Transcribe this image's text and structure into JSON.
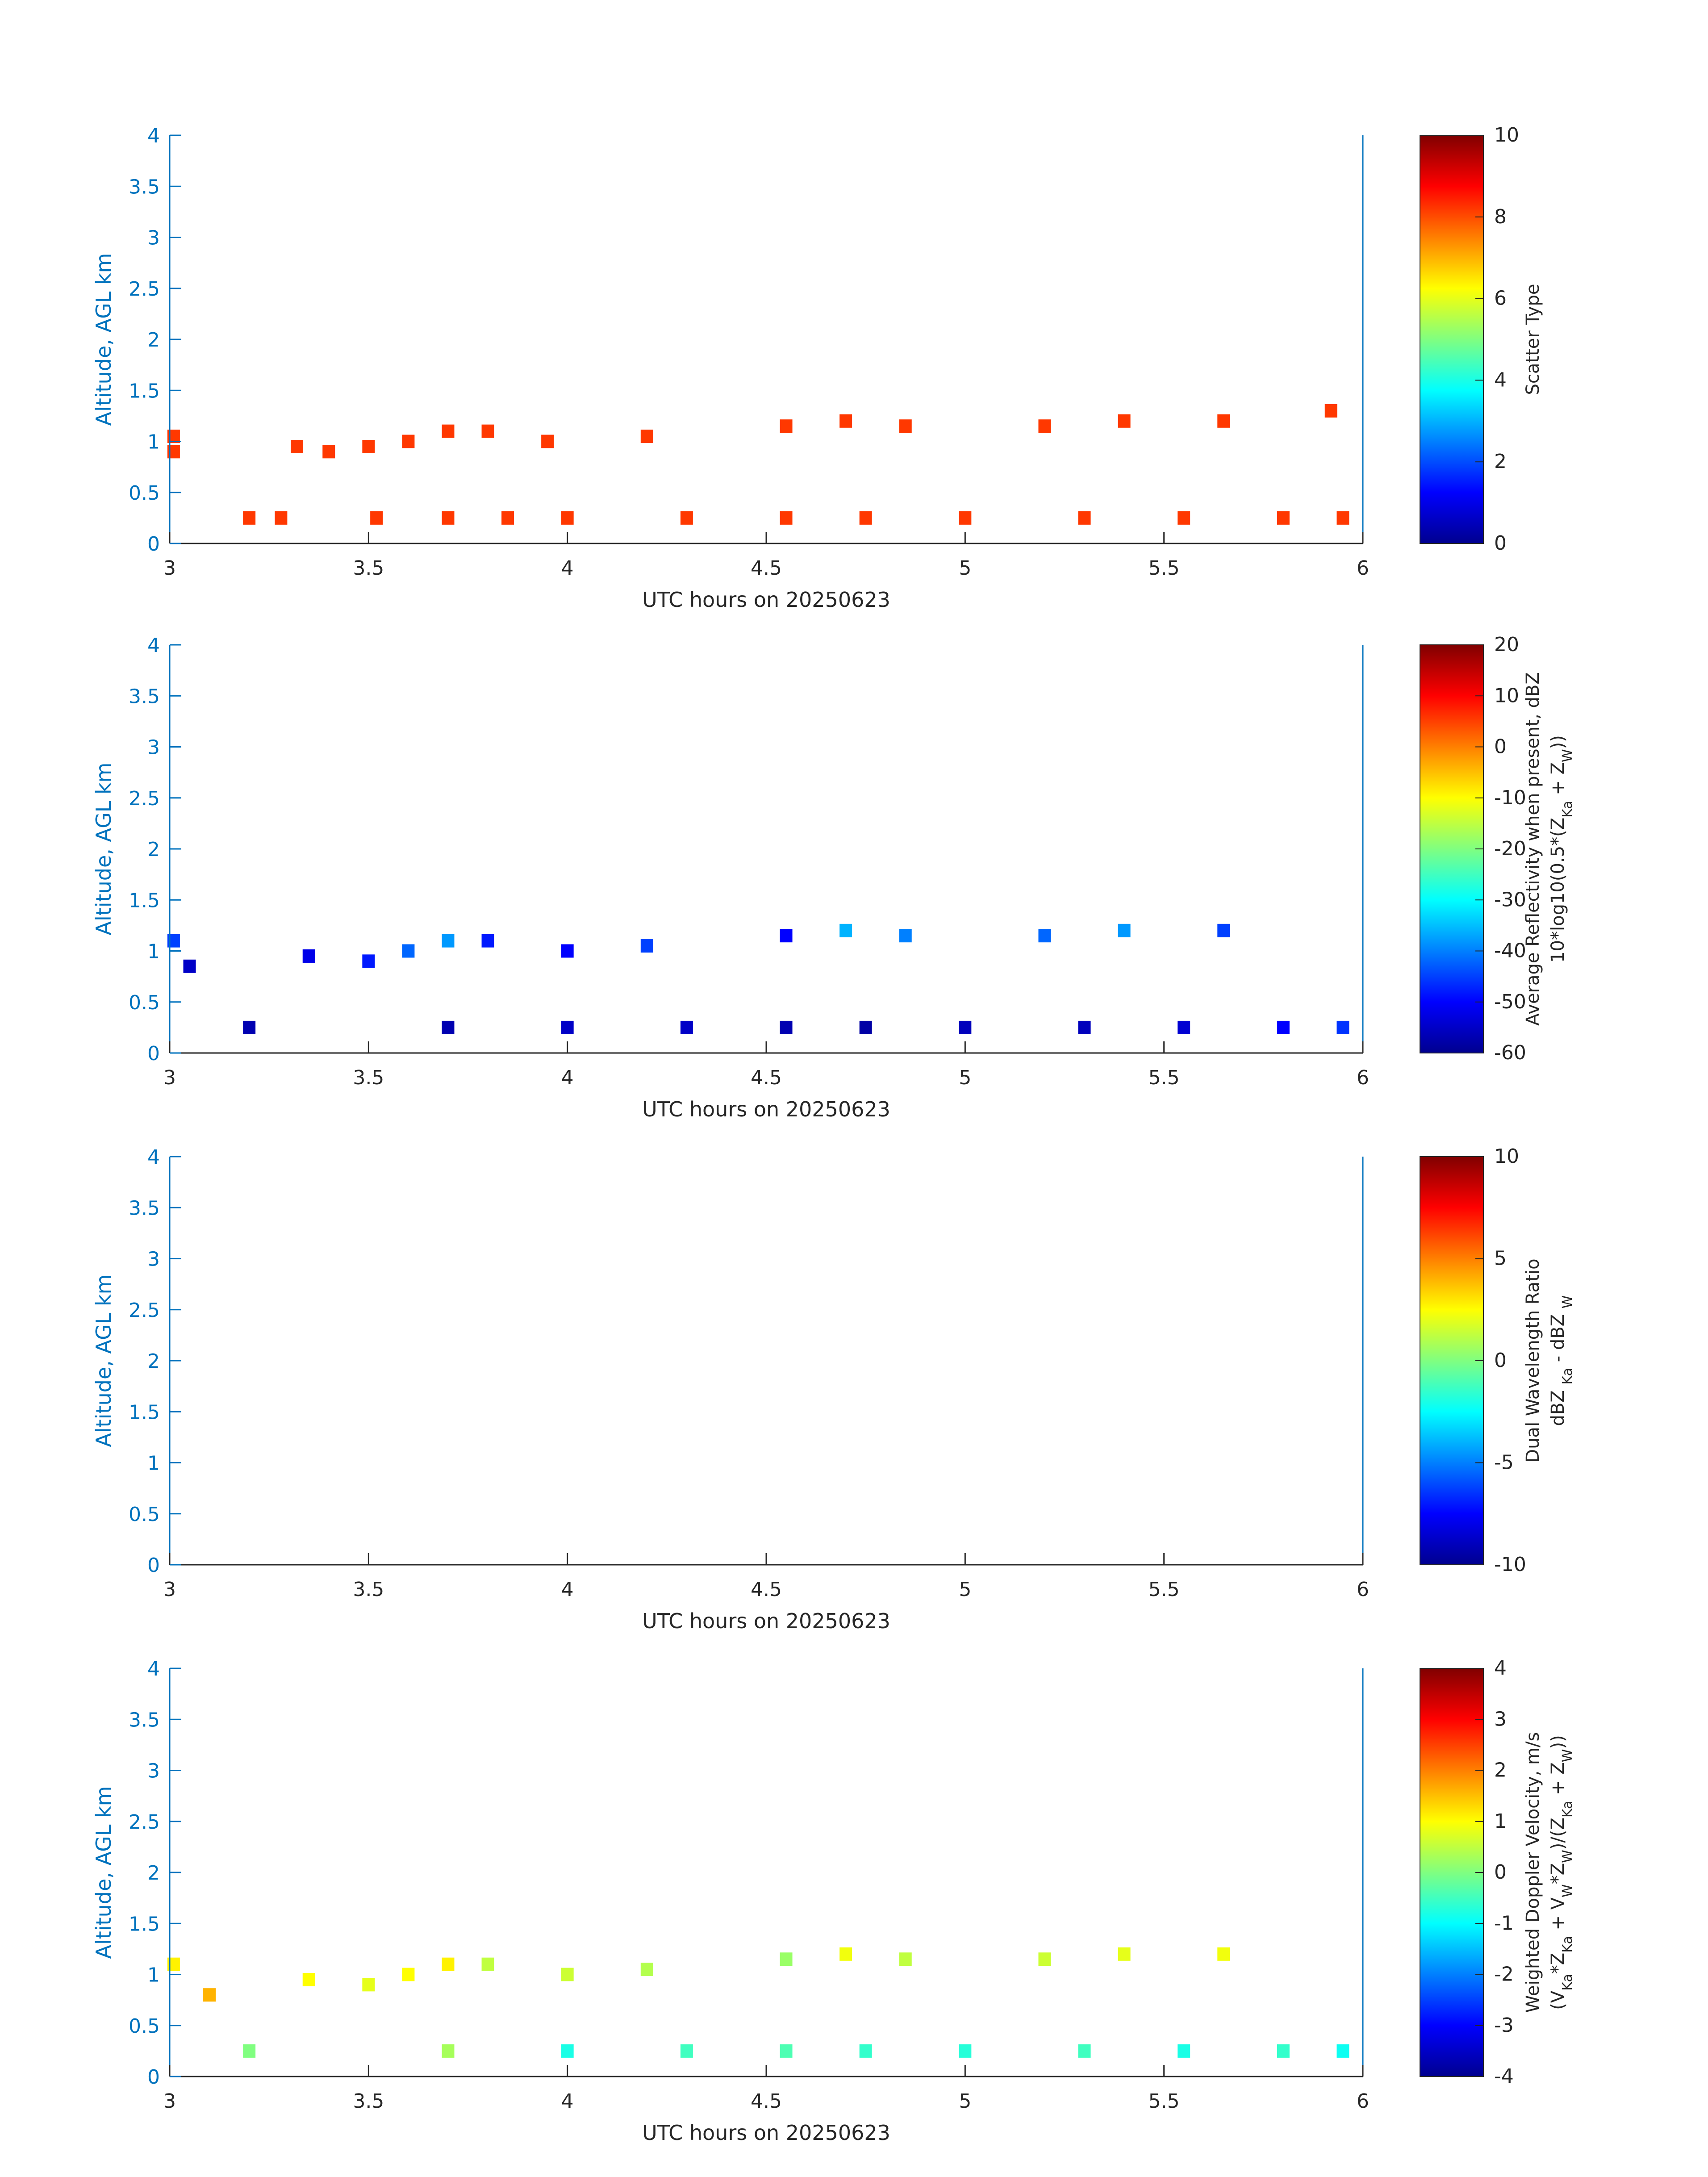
{
  "chart_data": [
    {
      "type": "heatmap",
      "xlabel": "UTC hours on 20250623",
      "ylabel": "Altitude, AGL km",
      "xlim": [
        3,
        6
      ],
      "ylim": [
        0,
        4
      ],
      "xticks": [
        "3",
        "3.5",
        "4",
        "4.5",
        "5",
        "5.5",
        "6"
      ],
      "yticks": [
        "0",
        "0.5",
        "1",
        "1.5",
        "2",
        "2.5",
        "3",
        "3.5",
        "4"
      ],
      "colorbar": {
        "label_lines": [
          "Scatter Type"
        ],
        "range": [
          0,
          10
        ],
        "ticks": [
          "0",
          "2",
          "4",
          "6",
          "8",
          "10"
        ]
      },
      "cells": [
        {
          "x": 3.01,
          "alt": 1.05,
          "v": 8.2
        },
        {
          "x": 3.01,
          "alt": 0.9,
          "v": 8.2
        },
        {
          "x": 3.2,
          "alt": 0.25,
          "v": 8.2
        },
        {
          "x": 3.28,
          "alt": 0.25,
          "v": 8.2
        },
        {
          "x": 3.32,
          "alt": 0.95,
          "v": 8.2
        },
        {
          "x": 3.4,
          "alt": 0.9,
          "v": 8.2
        },
        {
          "x": 3.5,
          "alt": 0.95,
          "v": 8.2
        },
        {
          "x": 3.52,
          "alt": 0.25,
          "v": 8.2
        },
        {
          "x": 3.6,
          "alt": 1.0,
          "v": 8.2
        },
        {
          "x": 3.7,
          "alt": 1.1,
          "v": 8.2
        },
        {
          "x": 3.7,
          "alt": 0.25,
          "v": 8.2
        },
        {
          "x": 3.8,
          "alt": 1.1,
          "v": 8.2
        },
        {
          "x": 3.85,
          "alt": 0.25,
          "v": 8.2
        },
        {
          "x": 3.95,
          "alt": 1.0,
          "v": 8.2
        },
        {
          "x": 4.0,
          "alt": 0.25,
          "v": 8.2
        },
        {
          "x": 4.2,
          "alt": 1.05,
          "v": 8.2
        },
        {
          "x": 4.3,
          "alt": 0.25,
          "v": 8.2
        },
        {
          "x": 4.55,
          "alt": 1.15,
          "v": 8.2
        },
        {
          "x": 4.55,
          "alt": 0.25,
          "v": 8.2
        },
        {
          "x": 4.7,
          "alt": 1.2,
          "v": 8.2
        },
        {
          "x": 4.75,
          "alt": 0.25,
          "v": 8.2
        },
        {
          "x": 4.85,
          "alt": 1.15,
          "v": 8.2
        },
        {
          "x": 5.0,
          "alt": 0.25,
          "v": 8.2
        },
        {
          "x": 5.2,
          "alt": 1.15,
          "v": 8.2
        },
        {
          "x": 5.3,
          "alt": 0.25,
          "v": 8.2
        },
        {
          "x": 5.4,
          "alt": 1.2,
          "v": 8.2
        },
        {
          "x": 5.55,
          "alt": 0.25,
          "v": 8.2
        },
        {
          "x": 5.65,
          "alt": 1.2,
          "v": 8.2
        },
        {
          "x": 5.8,
          "alt": 0.25,
          "v": 8.2
        },
        {
          "x": 5.92,
          "alt": 1.3,
          "v": 8.2
        },
        {
          "x": 5.95,
          "alt": 0.25,
          "v": 8.2
        }
      ]
    },
    {
      "type": "heatmap",
      "xlabel": "UTC hours on 20250623",
      "ylabel": "Altitude, AGL km",
      "xlim": [
        3,
        6
      ],
      "ylim": [
        0,
        4
      ],
      "xticks": [
        "3",
        "3.5",
        "4",
        "4.5",
        "5",
        "5.5",
        "6"
      ],
      "yticks": [
        "0",
        "0.5",
        "1",
        "1.5",
        "2",
        "2.5",
        "3",
        "3.5",
        "4"
      ],
      "colorbar": {
        "label_lines": [
          "Average Reflectivity when present, dBZ",
          "10*log10(0.5*(Z<sub>Ka</sub> + Z<sub>W</sub>))"
        ],
        "range": [
          -60,
          20
        ],
        "ticks": [
          "-60",
          "-50",
          "-40",
          "-30",
          "-20",
          "-10",
          "0",
          "10",
          "20"
        ]
      },
      "cells": [
        {
          "x": 3.01,
          "alt": 1.1,
          "v": -45
        },
        {
          "x": 3.05,
          "alt": 0.85,
          "v": -55
        },
        {
          "x": 3.2,
          "alt": 0.25,
          "v": -57
        },
        {
          "x": 3.35,
          "alt": 0.95,
          "v": -52
        },
        {
          "x": 3.5,
          "alt": 0.9,
          "v": -48
        },
        {
          "x": 3.6,
          "alt": 1.0,
          "v": -42
        },
        {
          "x": 3.7,
          "alt": 1.1,
          "v": -38
        },
        {
          "x": 3.7,
          "alt": 0.25,
          "v": -57
        },
        {
          "x": 3.8,
          "alt": 1.1,
          "v": -48
        },
        {
          "x": 4.0,
          "alt": 1.0,
          "v": -50
        },
        {
          "x": 4.0,
          "alt": 0.25,
          "v": -55
        },
        {
          "x": 4.2,
          "alt": 1.05,
          "v": -45
        },
        {
          "x": 4.3,
          "alt": 0.25,
          "v": -55
        },
        {
          "x": 4.55,
          "alt": 1.15,
          "v": -50
        },
        {
          "x": 4.55,
          "alt": 0.25,
          "v": -57
        },
        {
          "x": 4.7,
          "alt": 1.2,
          "v": -36
        },
        {
          "x": 4.75,
          "alt": 0.25,
          "v": -58
        },
        {
          "x": 4.85,
          "alt": 1.15,
          "v": -40
        },
        {
          "x": 5.0,
          "alt": 0.25,
          "v": -56
        },
        {
          "x": 5.2,
          "alt": 1.15,
          "v": -42
        },
        {
          "x": 5.3,
          "alt": 0.25,
          "v": -56
        },
        {
          "x": 5.4,
          "alt": 1.2,
          "v": -38
        },
        {
          "x": 5.55,
          "alt": 0.25,
          "v": -54
        },
        {
          "x": 5.65,
          "alt": 1.2,
          "v": -45
        },
        {
          "x": 5.8,
          "alt": 0.25,
          "v": -50
        },
        {
          "x": 5.95,
          "alt": 0.25,
          "v": -46
        }
      ]
    },
    {
      "type": "heatmap",
      "xlabel": "UTC hours on 20250623",
      "ylabel": "Altitude, AGL km",
      "xlim": [
        3,
        6
      ],
      "ylim": [
        0,
        4
      ],
      "xticks": [
        "3",
        "3.5",
        "4",
        "4.5",
        "5",
        "5.5",
        "6"
      ],
      "yticks": [
        "0",
        "0.5",
        "1",
        "1.5",
        "2",
        "2.5",
        "3",
        "3.5",
        "4"
      ],
      "colorbar": {
        "label_lines": [
          "Dual Wavelength Ratio",
          "dBZ <sub>Ka</sub> - dBZ <sub>W</sub>"
        ],
        "range": [
          -10,
          10
        ],
        "ticks": [
          "-10",
          "-5",
          "0",
          "5",
          "10"
        ]
      },
      "cells": []
    },
    {
      "type": "heatmap",
      "xlabel": "UTC hours on 20250623",
      "ylabel": "Altitude, AGL km",
      "xlim": [
        3,
        6
      ],
      "ylim": [
        0,
        4
      ],
      "xticks": [
        "3",
        "3.5",
        "4",
        "4.5",
        "5",
        "5.5",
        "6"
      ],
      "yticks": [
        "0",
        "0.5",
        "1",
        "1.5",
        "2",
        "2.5",
        "3",
        "3.5",
        "4"
      ],
      "colorbar": {
        "label_lines": [
          "Weighted Doppler Velocity, m/s",
          "(V<sub>Ka</sub>*Z<sub>Ka</sub> + V<sub>W</sub>*Z<sub>W</sub>)/(Z<sub>Ka</sub> + Z<sub>W</sub>))"
        ],
        "range": [
          -4,
          4
        ],
        "ticks": [
          "-4",
          "-3",
          "-2",
          "-1",
          "0",
          "1",
          "2",
          "3",
          "4"
        ]
      },
      "cells": [
        {
          "x": 3.01,
          "alt": 1.1,
          "v": 1.1
        },
        {
          "x": 3.1,
          "alt": 0.8,
          "v": 1.6
        },
        {
          "x": 3.2,
          "alt": 0.25,
          "v": 0.0
        },
        {
          "x": 3.35,
          "alt": 0.95,
          "v": 1.0
        },
        {
          "x": 3.5,
          "alt": 0.9,
          "v": 0.8
        },
        {
          "x": 3.6,
          "alt": 1.0,
          "v": 1.0
        },
        {
          "x": 3.7,
          "alt": 1.1,
          "v": 1.1
        },
        {
          "x": 3.7,
          "alt": 0.25,
          "v": 0.3
        },
        {
          "x": 3.8,
          "alt": 1.1,
          "v": 0.5
        },
        {
          "x": 4.0,
          "alt": 1.0,
          "v": 0.6
        },
        {
          "x": 4.0,
          "alt": 0.25,
          "v": -0.8
        },
        {
          "x": 4.2,
          "alt": 1.05,
          "v": 0.4
        },
        {
          "x": 4.3,
          "alt": 0.25,
          "v": -0.5
        },
        {
          "x": 4.55,
          "alt": 1.15,
          "v": 0.2
        },
        {
          "x": 4.55,
          "alt": 0.25,
          "v": -0.4
        },
        {
          "x": 4.7,
          "alt": 1.2,
          "v": 0.9
        },
        {
          "x": 4.75,
          "alt": 0.25,
          "v": -0.6
        },
        {
          "x": 4.85,
          "alt": 1.15,
          "v": 0.5
        },
        {
          "x": 5.0,
          "alt": 0.25,
          "v": -0.7
        },
        {
          "x": 5.2,
          "alt": 1.15,
          "v": 0.6
        },
        {
          "x": 5.3,
          "alt": 0.25,
          "v": -0.5
        },
        {
          "x": 5.4,
          "alt": 1.2,
          "v": 0.8
        },
        {
          "x": 5.55,
          "alt": 0.25,
          "v": -0.8
        },
        {
          "x": 5.65,
          "alt": 1.2,
          "v": 0.9
        },
        {
          "x": 5.8,
          "alt": 0.25,
          "v": -0.6
        },
        {
          "x": 5.95,
          "alt": 0.25,
          "v": -0.9
        }
      ]
    }
  ],
  "colors": {
    "axis_label": "#0072BD",
    "tick_text": "#262626"
  }
}
